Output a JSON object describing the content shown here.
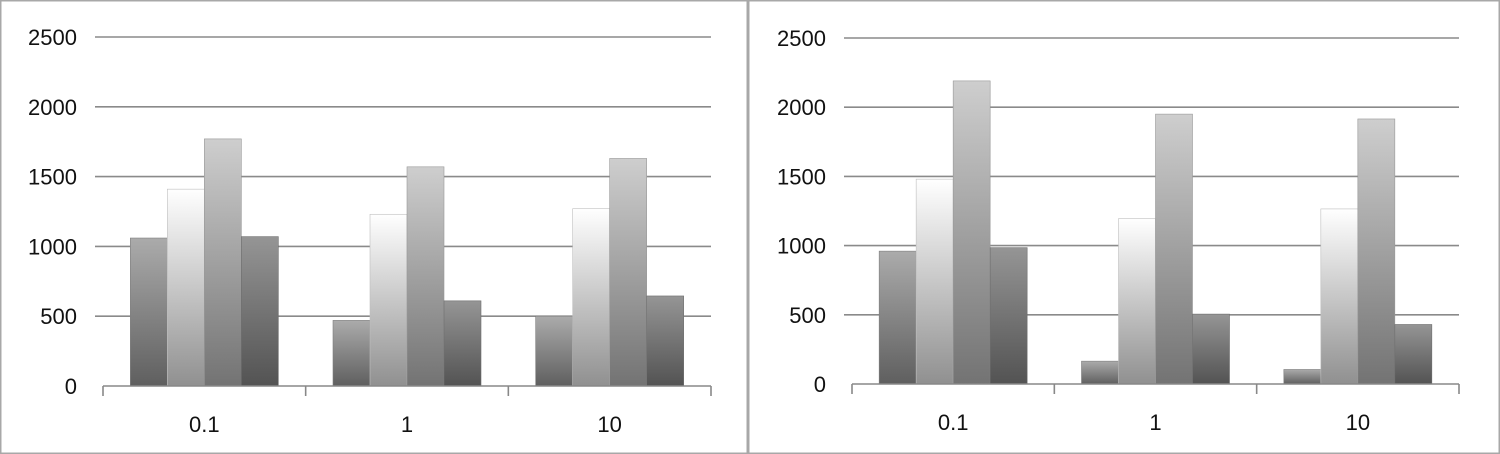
{
  "chart_data": [
    {
      "type": "bar",
      "title": "",
      "xlabel": "",
      "ylabel": "",
      "categories": [
        "0.1",
        "1",
        "10"
      ],
      "ylim": [
        0,
        2500
      ],
      "yticks": [
        0,
        500,
        1000,
        1500,
        2000,
        2500
      ],
      "grid": true,
      "legend": "none",
      "series": [
        {
          "values": [
            1060,
            470,
            500
          ],
          "color": "#8c8c8c"
        },
        {
          "values": [
            1410,
            1230,
            1270
          ],
          "color": "#d4d4d4"
        },
        {
          "values": [
            1770,
            1570,
            1630
          ],
          "color": "#a9a9a9"
        },
        {
          "values": [
            1070,
            610,
            645
          ],
          "color": "#7a7a7a"
        }
      ]
    },
    {
      "type": "bar",
      "title": "",
      "xlabel": "",
      "ylabel": "",
      "categories": [
        "0.1",
        "1",
        "10"
      ],
      "ylim": [
        0,
        2500
      ],
      "yticks": [
        0,
        500,
        1000,
        1500,
        2000,
        2500
      ],
      "grid": true,
      "legend": "none",
      "series": [
        {
          "values": [
            960,
            165,
            105
          ],
          "color": "#8c8c8c"
        },
        {
          "values": [
            1480,
            1195,
            1265
          ],
          "color": "#d4d4d4"
        },
        {
          "values": [
            2190,
            1950,
            1915
          ],
          "color": "#a9a9a9"
        },
        {
          "values": [
            985,
            505,
            430
          ],
          "color": "#7a7a7a"
        }
      ]
    }
  ]
}
